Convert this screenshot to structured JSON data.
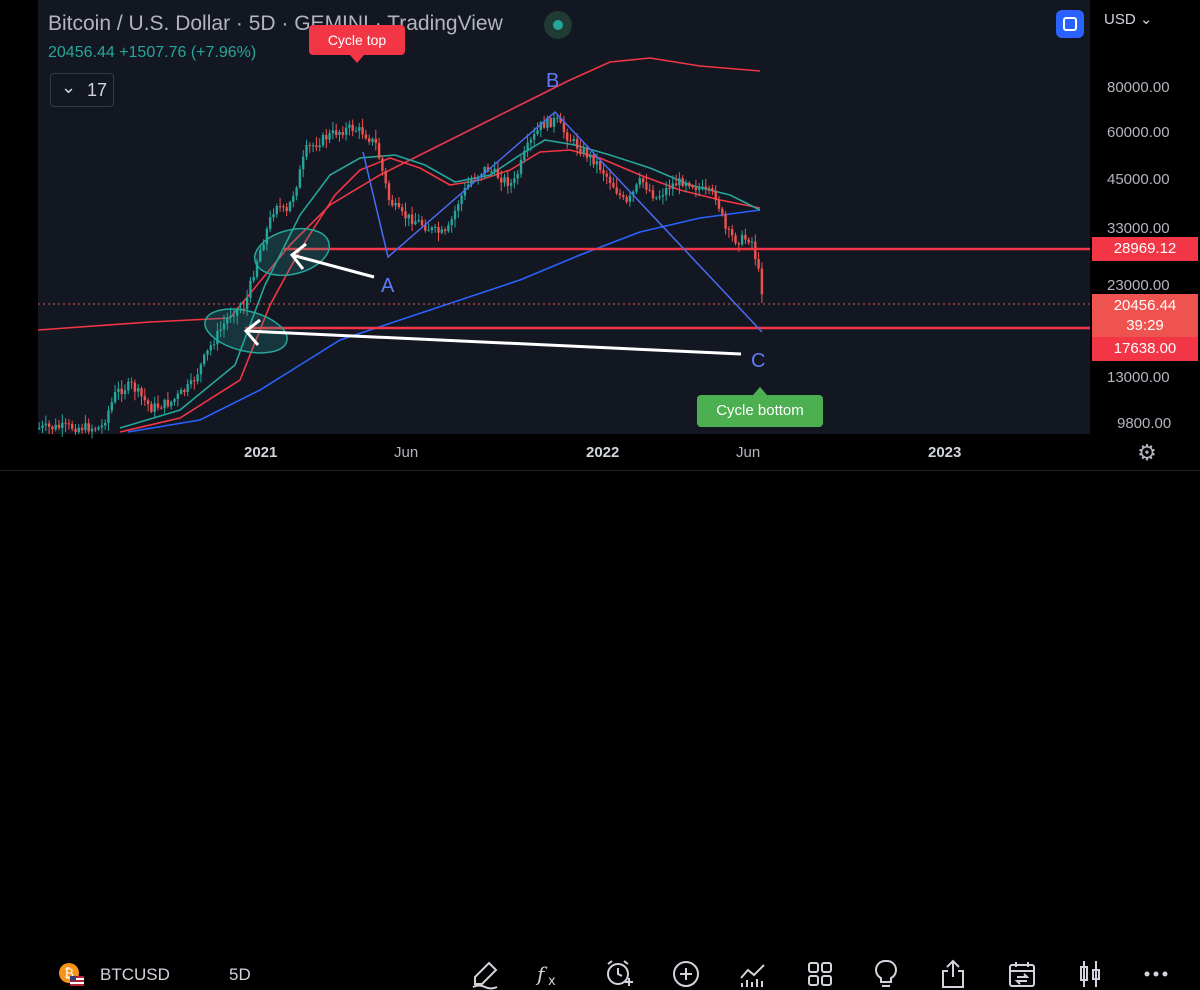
{
  "header": {
    "title": "Bitcoin / U.S. Dollar · 5D · GEMINI · TradingView",
    "last_price": "20456.44",
    "change": "+1507.76 (+7.96%)",
    "collapse_count": "17"
  },
  "currency": "USD",
  "price_axis": {
    "ticks": [
      "80000.00",
      "60000.00",
      "45000.00",
      "33000.00",
      "23000.00",
      "13000.00",
      "9800.00"
    ],
    "tag_resistance": "28969.12",
    "tag_last": "20456.44",
    "tag_countdown": "39:29",
    "tag_support": "17638.00"
  },
  "time_axis": {
    "labels": [
      "2021",
      "Jun",
      "2022",
      "Jun",
      "2023"
    ]
  },
  "annotations": {
    "cycle_top": "Cycle top",
    "cycle_bottom": "Cycle bottom",
    "point_a": "A",
    "point_b": "B",
    "point_c": "C"
  },
  "colors": {
    "up": "#26a69a",
    "down": "#ef5350",
    "background": "#131722",
    "accent": "#2962ff",
    "pattern": "#2962ff"
  },
  "toolbar": {
    "symbol": "BTCUSD",
    "interval": "5D",
    "icons": [
      "draw-icon",
      "indicators-icon",
      "alert-icon",
      "add-icon",
      "chart-type-icon",
      "layout-icon",
      "ideas-icon",
      "share-icon",
      "replay-icon",
      "candles-icon",
      "more-icon"
    ]
  }
}
